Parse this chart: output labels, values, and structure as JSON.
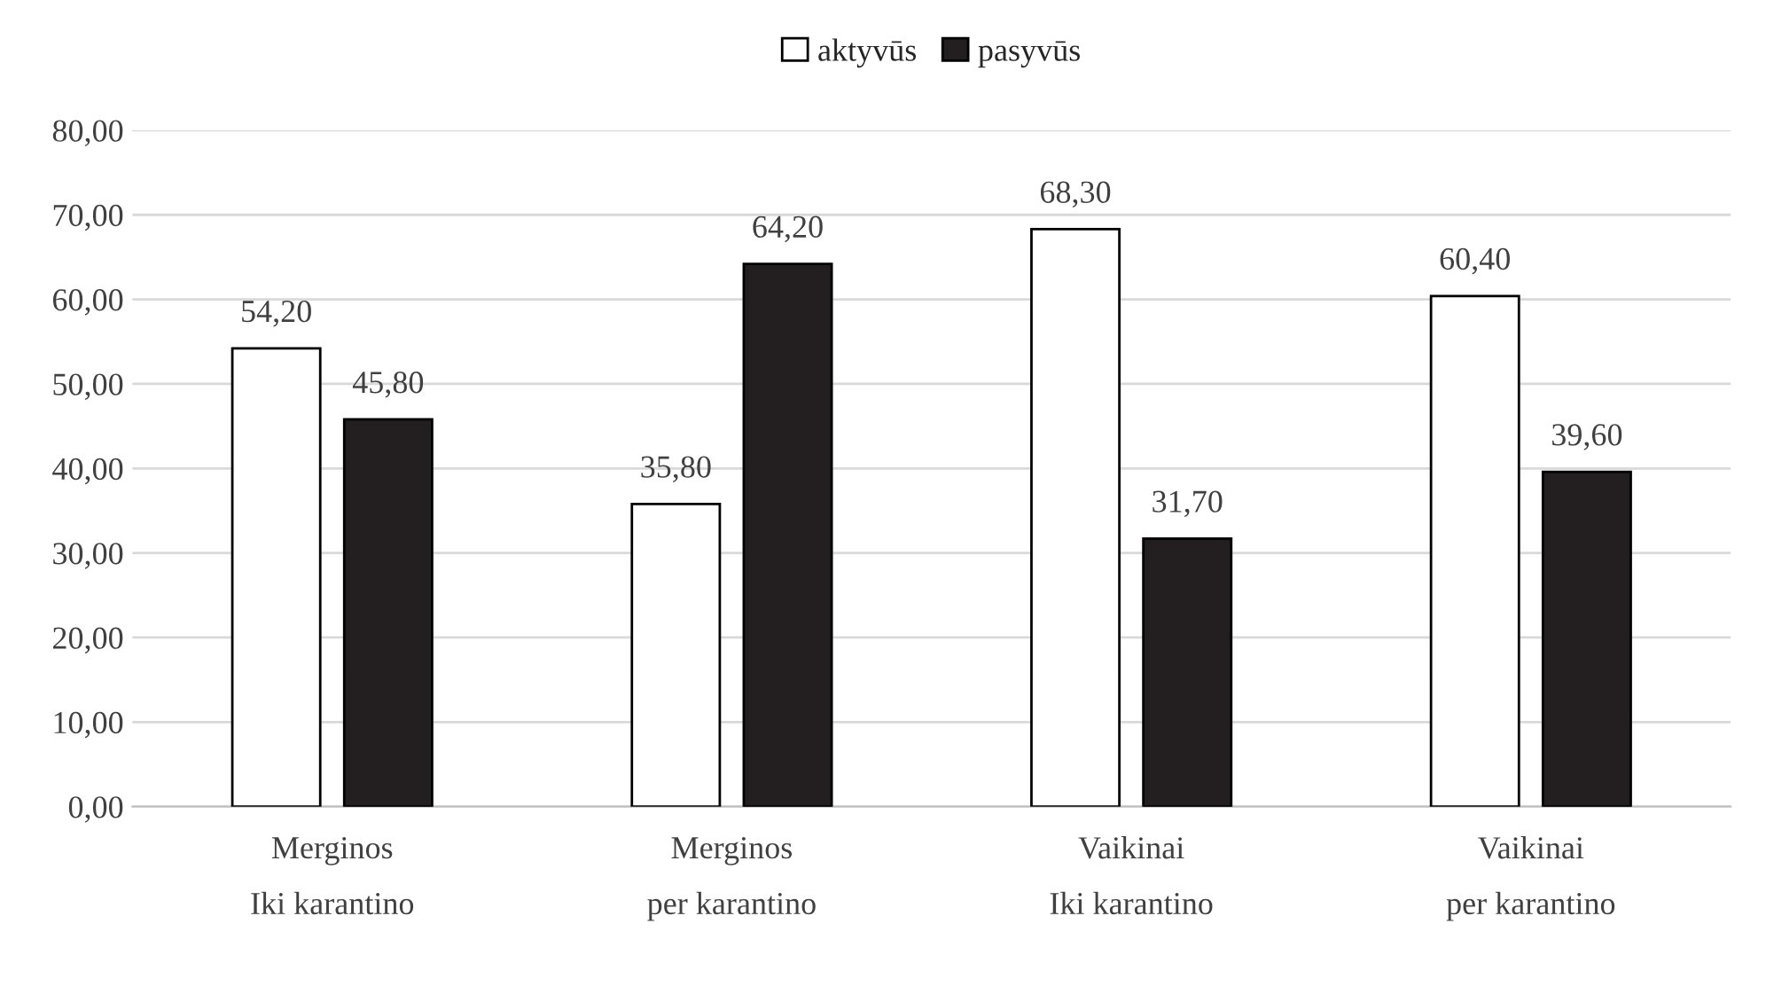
{
  "chart_data": {
    "type": "bar",
    "categories": [
      "Merginos\nIki karantino",
      "Merginos\nper karantino",
      "Vaikinai\nIki karantino",
      "Vaikinai\nper karantino"
    ],
    "series": [
      {
        "name": "aktyvūs",
        "color": "#ffffff",
        "values": [
          54.2,
          35.8,
          68.3,
          60.4
        ],
        "value_labels": [
          "54,20",
          "35,80",
          "68,30",
          "60,40"
        ]
      },
      {
        "name": "pasyvūs",
        "color": "#231f20",
        "values": [
          45.8,
          64.2,
          31.7,
          39.6
        ],
        "value_labels": [
          "45,80",
          "64,20",
          "31,70",
          "39,60"
        ]
      }
    ],
    "ylim": [
      0,
      80
    ],
    "yticks": [
      {
        "value": 0,
        "label": "0,00"
      },
      {
        "value": 10,
        "label": "10,00"
      },
      {
        "value": 20,
        "label": "20,00"
      },
      {
        "value": 30,
        "label": "30,00"
      },
      {
        "value": 40,
        "label": "40,00"
      },
      {
        "value": 50,
        "label": "50,00"
      },
      {
        "value": 60,
        "label": "60,00"
      },
      {
        "value": 70,
        "label": "70,00"
      },
      {
        "value": 80,
        "label": "80,00"
      }
    ],
    "grid": "y",
    "legend": "top"
  }
}
